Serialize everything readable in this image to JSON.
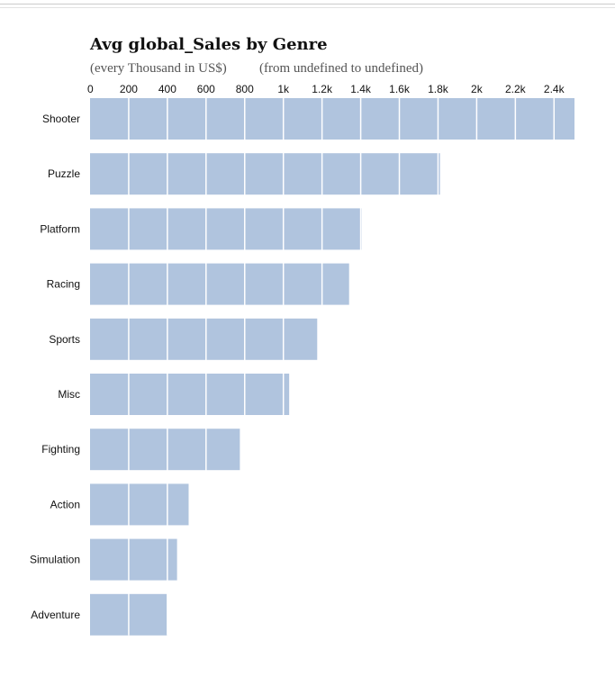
{
  "chart_data": {
    "type": "bar",
    "orientation": "horizontal",
    "title": "Avg global_Sales by Genre",
    "subtitle_unit": "(every Thousand in US$)",
    "subtitle_range": "(from undefined to undefined)",
    "categories": [
      "Shooter",
      "Puzzle",
      "Platform",
      "Racing",
      "Sports",
      "Misc",
      "Fighting",
      "Action",
      "Simulation",
      "Adventure"
    ],
    "values": [
      2510,
      1810,
      1405,
      1340,
      1175,
      1030,
      775,
      510,
      450,
      400
    ],
    "xlim": [
      0,
      2500
    ],
    "x_ticks": [
      0,
      200,
      400,
      600,
      800,
      1000,
      1200,
      1400,
      1600,
      1800,
      2000,
      2200,
      2400
    ],
    "x_tick_labels": [
      "0",
      "200",
      "400",
      "600",
      "800",
      "1k",
      "1.2k",
      "1.4k",
      "1.6k",
      "1.8k",
      "2k",
      "2.2k",
      "2.4k"
    ],
    "x_axis_position": "top",
    "grid": true,
    "legend": "none",
    "bar_color": "#b0c4de",
    "grid_color": "#ffffff"
  }
}
